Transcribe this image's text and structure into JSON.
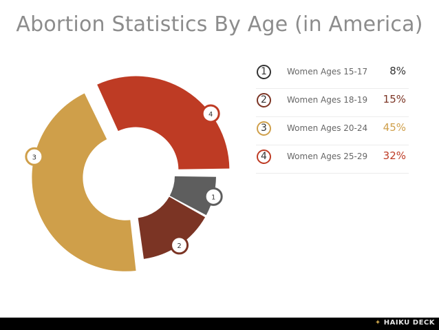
{
  "chart_data": {
    "type": "pie",
    "title": "Abortion Statistics By Age (in America)",
    "donut": true,
    "categories": [
      "Women Ages 15-17",
      "Women Ages 18-19",
      "Women Ages 20-24",
      "Women Ages 25-29"
    ],
    "badges": [
      "1",
      "2",
      "3",
      "4"
    ],
    "values": [
      8,
      15,
      45,
      32
    ],
    "value_labels": [
      "8%",
      "15%",
      "45%",
      "32%"
    ],
    "colors": [
      "#5e5e5e",
      "#7b3424",
      "#cf9f4a",
      "#be3b24"
    ],
    "legend_text_colors": [
      "#333333",
      "#7b3424",
      "#cf9f4a",
      "#be3b24"
    ],
    "exploded_slices": [
      "Women Ages 20-24",
      "Women Ages 25-29"
    ],
    "legend_position": "right"
  },
  "footer": {
    "brand": "HAIKU DECK"
  }
}
